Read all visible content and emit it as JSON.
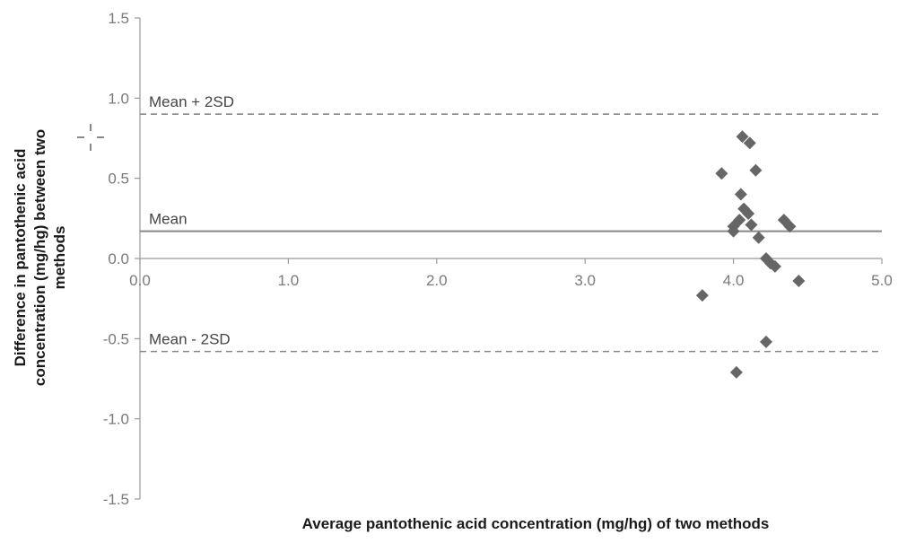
{
  "chart_data": {
    "type": "scatter",
    "title": "",
    "xlabel": "Average pantothenic acid concentration (mg/hg) of two methods",
    "ylabel_lines": [
      "Difference in pantothenic acid",
      "concentration (mg/hg) between two",
      "methods"
    ],
    "xlim": [
      0.0,
      5.0
    ],
    "ylim": [
      -1.5,
      1.5
    ],
    "x_ticks": [
      0.0,
      1.0,
      2.0,
      3.0,
      4.0,
      5.0
    ],
    "x_tick_labels": [
      "0.0",
      "1.0",
      "2.0",
      "3.0",
      "4.0",
      "5.0"
    ],
    "y_ticks": [
      1.5,
      1.0,
      0.5,
      0.0,
      -0.5,
      -1.0,
      -1.5
    ],
    "y_tick_labels": [
      "1.5",
      "1.0",
      "0.5",
      "0.0",
      "-0.5",
      "-1.0",
      "-1.5"
    ],
    "reference_lines": [
      {
        "label": "Mean + 2SD",
        "y": 0.9,
        "style": "dashed"
      },
      {
        "label": "Mean",
        "y": 0.17,
        "style": "solid"
      },
      {
        "label": "Mean - 2SD",
        "y": -0.58,
        "style": "dashed"
      }
    ],
    "points": [
      {
        "x": 3.92,
        "y": 0.53
      },
      {
        "x": 4.06,
        "y": 0.76
      },
      {
        "x": 4.11,
        "y": 0.72
      },
      {
        "x": 4.15,
        "y": 0.55
      },
      {
        "x": 4.05,
        "y": 0.4
      },
      {
        "x": 4.07,
        "y": 0.31
      },
      {
        "x": 4.1,
        "y": 0.28
      },
      {
        "x": 4.04,
        "y": 0.24
      },
      {
        "x": 4.12,
        "y": 0.21
      },
      {
        "x": 4.0,
        "y": 0.2
      },
      {
        "x": 4.0,
        "y": 0.17
      },
      {
        "x": 4.17,
        "y": 0.13
      },
      {
        "x": 4.34,
        "y": 0.24
      },
      {
        "x": 4.38,
        "y": 0.2
      },
      {
        "x": 4.22,
        "y": 0.0
      },
      {
        "x": 4.25,
        "y": -0.03
      },
      {
        "x": 4.28,
        "y": -0.05
      },
      {
        "x": 3.79,
        "y": -0.23
      },
      {
        "x": 4.44,
        "y": -0.14
      },
      {
        "x": 4.22,
        "y": -0.52
      },
      {
        "x": 4.02,
        "y": -0.71
      }
    ],
    "colors": {
      "marker": "#666666",
      "reference_line": "#888888",
      "axis": "#9a9a9a"
    },
    "grid": false
  }
}
